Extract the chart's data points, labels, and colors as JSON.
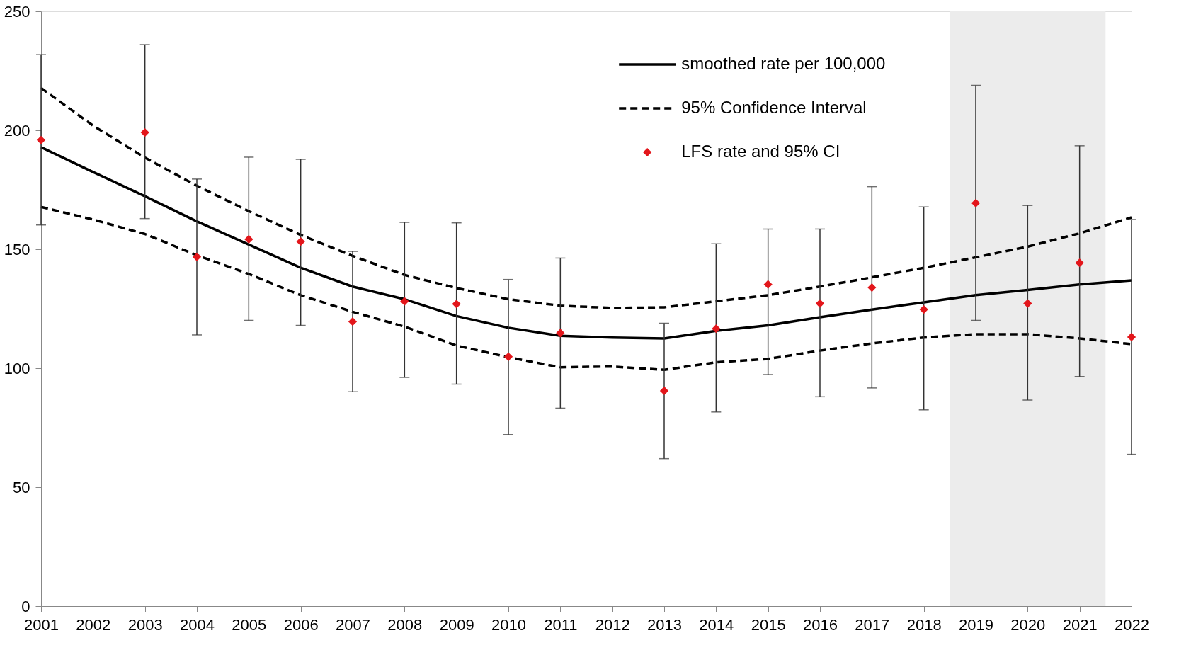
{
  "chart_data": {
    "type": "line",
    "x": [
      2001,
      2002,
      2003,
      2004,
      2005,
      2006,
      2007,
      2008,
      2009,
      2010,
      2011,
      2012,
      2013,
      2014,
      2015,
      2016,
      2017,
      2018,
      2019,
      2020,
      2021,
      2022
    ],
    "xlim": [
      2001,
      2022
    ],
    "xticks": [
      2001,
      2002,
      2003,
      2004,
      2005,
      2006,
      2007,
      2008,
      2009,
      2010,
      2011,
      2012,
      2013,
      2014,
      2015,
      2016,
      2017,
      2018,
      2019,
      2020,
      2021,
      2022
    ],
    "ylim": [
      0,
      250
    ],
    "yticks": [
      0,
      50,
      100,
      150,
      200,
      250
    ],
    "grid": false,
    "legend": "top right",
    "bands": [
      {
        "axis": "x",
        "from": 2018.5,
        "to": 2021.5,
        "color": "#ececec"
      }
    ],
    "series": [
      {
        "name": "smoothed rate per 100,000",
        "line_style": "solid",
        "color": "#000000",
        "values": [
          192.9,
          182.5,
          172.3,
          161.7,
          152,
          142.2,
          134.3,
          129,
          121.9,
          117,
          113.6,
          112.9,
          112.5,
          115.7,
          118,
          121.4,
          124.6,
          127.7,
          130.7,
          132.9,
          135.2,
          136.9
        ]
      },
      {
        "name": "95% Confidence Interval",
        "line_style": "dashed",
        "color": "#000000",
        "values": [
          217.8,
          202,
          188.5,
          176.7,
          166,
          156,
          147.2,
          139.2,
          133.7,
          129,
          126.3,
          125.3,
          125.6,
          128.1,
          130.7,
          134.3,
          138.2,
          142.2,
          146.6,
          151.1,
          156.7,
          163.4
        ]
      },
      {
        "line_style": "dashed",
        "color": "#000000",
        "values": [
          167.8,
          162.5,
          156.4,
          147.5,
          139.6,
          130.7,
          123.7,
          117.5,
          109.5,
          104.6,
          100.4,
          100.7,
          99.3,
          102.5,
          103.9,
          107.4,
          110.4,
          112.9,
          114.3,
          114.3,
          112.5,
          110.1
        ]
      },
      {
        "name": "LFS rate and 95% CI",
        "type": "scatter",
        "marker": "diamond",
        "color": "#e3161b",
        "values": [
          195.9,
          null,
          199.1,
          146.8,
          154.2,
          153.2,
          119.6,
          128.1,
          127,
          104.8,
          114.8,
          null,
          90.5,
          116.6,
          135.2,
          127.2,
          133.9,
          124.7,
          169.4,
          127.2,
          144.3,
          113.1
        ],
        "errors": [
          [
            160.2,
            231.8
          ],
          null,
          [
            162.9,
            236
          ],
          [
            114,
            179.5
          ],
          [
            120.1,
            188.7
          ],
          [
            118,
            187.8
          ],
          [
            90.1,
            149.1
          ],
          [
            96.1,
            161.3
          ],
          [
            93.3,
            161.1
          ],
          [
            72.1,
            137.3
          ],
          [
            83.2,
            146.3
          ],
          null,
          [
            62,
            118.9
          ],
          [
            81.6,
            152.3
          ],
          [
            97.3,
            158.5
          ],
          [
            88,
            158.5
          ],
          [
            91.7,
            176.3
          ],
          [
            82.5,
            167.8
          ],
          [
            120.1,
            218.9
          ],
          [
            86.6,
            168.4
          ],
          [
            96.5,
            193.5
          ],
          [
            63.8,
            162.5
          ]
        ]
      }
    ]
  }
}
